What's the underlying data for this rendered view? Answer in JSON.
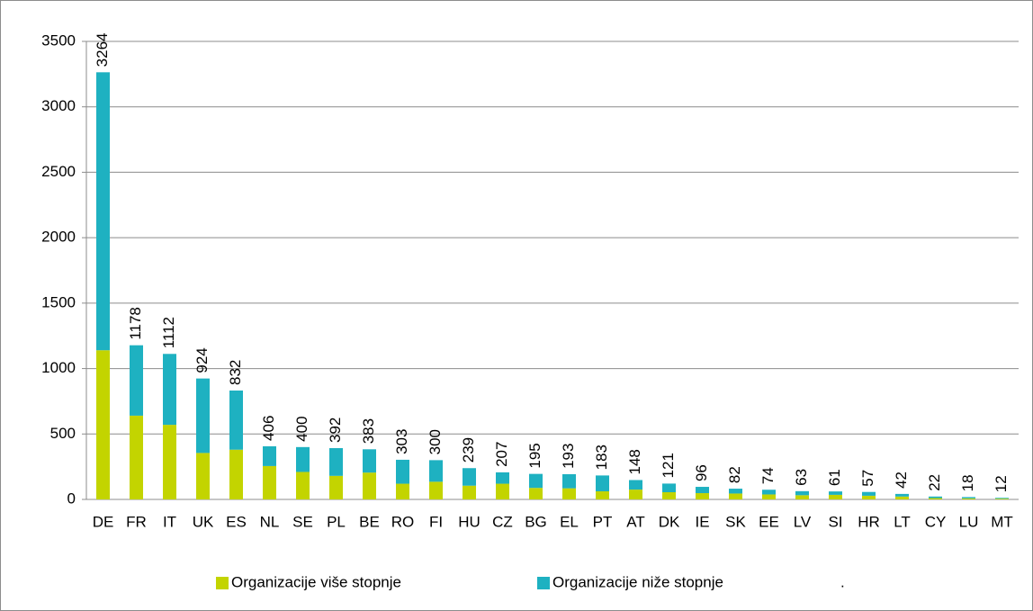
{
  "chart_data": {
    "type": "stacked_bar",
    "categories": [
      "DE",
      "FR",
      "IT",
      "UK",
      "ES",
      "NL",
      "SE",
      "PL",
      "BE",
      "RO",
      "FI",
      "HU",
      "CZ",
      "BG",
      "EL",
      "PT",
      "AT",
      "DK",
      "IE",
      "SK",
      "EE",
      "LV",
      "SI",
      "HR",
      "LT",
      "CY",
      "LU",
      "MT"
    ],
    "series": [
      {
        "name": "Organizacije više stopnje",
        "color": "#c3d400",
        "values": [
          1140,
          640,
          570,
          355,
          380,
          255,
          210,
          180,
          205,
          120,
          135,
          105,
          120,
          88,
          85,
          62,
          75,
          55,
          48,
          45,
          38,
          32,
          35,
          28,
          22,
          10,
          8,
          6
        ]
      },
      {
        "name": "Organizacije niže stopnje",
        "color": "#1eb1c1",
        "values": [
          2124,
          538,
          542,
          569,
          452,
          151,
          190,
          212,
          178,
          183,
          165,
          134,
          87,
          107,
          108,
          121,
          73,
          66,
          48,
          37,
          36,
          31,
          26,
          29,
          20,
          12,
          10,
          6
        ]
      }
    ],
    "totals": [
      3264,
      1178,
      1112,
      924,
      832,
      406,
      400,
      392,
      383,
      303,
      300,
      239,
      207,
      195,
      193,
      183,
      148,
      121,
      96,
      82,
      74,
      63,
      61,
      57,
      42,
      22,
      18,
      12
    ],
    "legend_note": ".",
    "ylim": [
      0,
      3500
    ],
    "yticks": [
      0,
      500,
      1000,
      1500,
      2000,
      2500,
      3000,
      3500
    ],
    "grid": true,
    "legend": "bottom"
  }
}
